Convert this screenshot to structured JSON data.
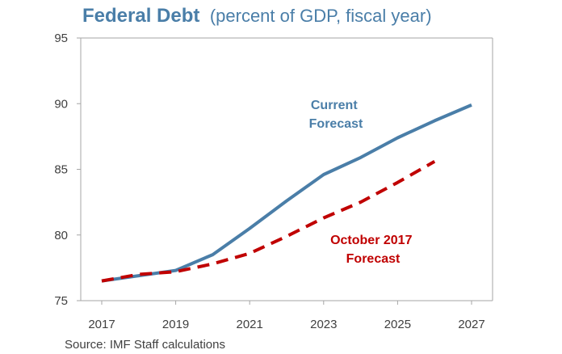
{
  "chart_data": {
    "type": "line",
    "title": "Federal Debt",
    "subtitle": "(percent of GDP, fiscal year)",
    "xlabel": "",
    "ylabel": "",
    "x_ticks": [
      "2017",
      "2019",
      "2021",
      "2023",
      "2025",
      "2027"
    ],
    "y_ticks": [
      "75",
      "80",
      "85",
      "90",
      "95"
    ],
    "xlim": [
      2017,
      2027
    ],
    "ylim": [
      75,
      95
    ],
    "grid": false,
    "series": [
      {
        "name": "Current Forecast",
        "label_lines": [
          "Current",
          "Forecast"
        ],
        "color": "#4a7ea8",
        "style": "solid",
        "x": [
          2017,
          2018,
          2019,
          2020,
          2021,
          2022,
          2023,
          2024,
          2025,
          2026,
          2027
        ],
        "y": [
          76.5,
          76.9,
          77.3,
          78.5,
          80.5,
          82.6,
          84.6,
          85.9,
          87.4,
          88.7,
          89.9
        ]
      },
      {
        "name": "October 2017 Forecast",
        "label_lines": [
          "October 2017",
          "Forecast"
        ],
        "color": "#c00000",
        "style": "dashed",
        "x": [
          2017,
          2018,
          2019,
          2020,
          2021,
          2022,
          2023,
          2024,
          2025,
          2026
        ],
        "y": [
          76.5,
          77.0,
          77.2,
          77.8,
          78.6,
          79.9,
          81.3,
          82.5,
          84.0,
          85.6
        ]
      }
    ],
    "source": "Source: IMF Staff calculations",
    "colors": {
      "title": "#4a7ea8",
      "axis": "#a6a6a6",
      "text": "#404040"
    }
  }
}
